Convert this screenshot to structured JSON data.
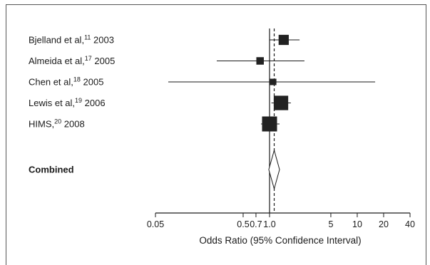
{
  "chart_data": {
    "type": "forest",
    "xlabel": "Odds Ratio (95% Confidence Interval)",
    "x_scale": "log",
    "xlim": [
      0.05,
      40
    ],
    "x_ticks": [
      0.05,
      0.5,
      0.7,
      1.0,
      5,
      10,
      20,
      40
    ],
    "x_tick_labels": [
      "0.05",
      "0.5",
      "0.7",
      "1.0",
      "5",
      "10",
      "20",
      "40"
    ],
    "reference_line": 1.0,
    "pooled_line": 1.13,
    "studies": [
      {
        "name": "Bjelland et al,",
        "ref": "11",
        "year": "2003",
        "or": 1.45,
        "lo": 1.0,
        "hi": 2.2,
        "weight": 0.55
      },
      {
        "name": "Almeida et al,",
        "ref": "17",
        "year": "2005",
        "or": 0.78,
        "lo": 0.25,
        "hi": 2.5,
        "weight": 0.3
      },
      {
        "name": "Chen et al,",
        "ref": "18",
        "year": "2005",
        "or": 1.1,
        "lo": 0.07,
        "hi": 16,
        "weight": 0.2
      },
      {
        "name": "Lewis et al,",
        "ref": "19",
        "year": "2006",
        "or": 1.35,
        "lo": 1.05,
        "hi": 1.75,
        "weight": 0.95
      },
      {
        "name": "HIMS,",
        "ref": "20",
        "year": "2008",
        "or": 1.0,
        "lo": 0.8,
        "hi": 1.3,
        "weight": 1.0
      }
    ],
    "combined": {
      "label": "Combined",
      "or": 1.13,
      "lo": 0.98,
      "hi": 1.3
    }
  }
}
